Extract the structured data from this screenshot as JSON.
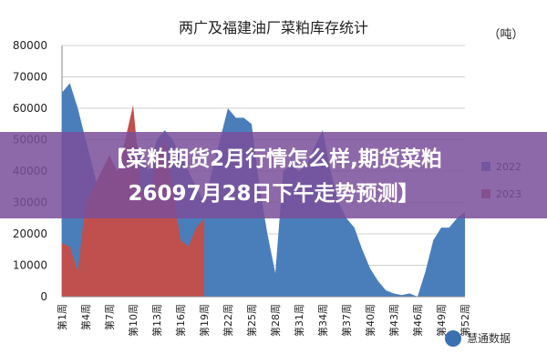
{
  "chart_data": {
    "type": "area",
    "title": "两广及福建油厂菜粕库存统计",
    "unit": "（吨）",
    "categories": [
      "第1周",
      null,
      null,
      "第4周",
      null,
      null,
      "第7周",
      null,
      null,
      "第10周",
      null,
      null,
      "第13周",
      null,
      null,
      "第16周",
      null,
      null,
      "第19周",
      null,
      null,
      "第22周",
      null,
      null,
      "第25周",
      null,
      null,
      "第28周",
      null,
      null,
      "第31周",
      null,
      null,
      "第34周",
      null,
      null,
      "第37周",
      null,
      null,
      "第40周",
      null,
      null,
      "第43周",
      null,
      null,
      "第46周",
      null,
      null,
      "第49周",
      null,
      null,
      "第52周"
    ],
    "series": [
      {
        "name": "2022",
        "color": "#4a7ebb",
        "values": [
          65000,
          68000,
          60000,
          50000,
          40000,
          30000,
          26000,
          35000,
          45000,
          52000,
          45000,
          40000,
          50000,
          53000,
          50000,
          45000,
          40000,
          35000,
          30000,
          40000,
          50000,
          60000,
          57000,
          57000,
          55000,
          35000,
          20000,
          7500,
          40000,
          42000,
          40000,
          42000,
          48000,
          53000,
          40000,
          30000,
          25000,
          22000,
          15000,
          9000,
          5000,
          2000,
          1000,
          500,
          1000,
          0,
          8000,
          18000,
          22000,
          22000,
          25000,
          27000
        ]
      },
      {
        "name": "2023",
        "color": "#c0504d",
        "values": [
          17000,
          16000,
          8000,
          30000,
          35000,
          40000,
          45000,
          40000,
          50000,
          61000,
          35000,
          30000,
          45000,
          50000,
          35000,
          18000,
          16000,
          22000,
          25000,
          null,
          null,
          null,
          null,
          null,
          null,
          null,
          null,
          null,
          null,
          null,
          null,
          null,
          null,
          null,
          null,
          null,
          null,
          null,
          null,
          null,
          null,
          null,
          null,
          null,
          null,
          null,
          null,
          null,
          null,
          null,
          null,
          null
        ]
      }
    ],
    "ylim": [
      0,
      80000
    ],
    "yticks": [
      0,
      10000,
      20000,
      30000,
      40000,
      50000,
      60000,
      70000,
      80000
    ],
    "grid": true,
    "banner": [
      "【菜粕期货2月行情怎么样,期货菜粕",
      "26097月28日下午走势预测】"
    ],
    "watermark": "慧通数据"
  }
}
